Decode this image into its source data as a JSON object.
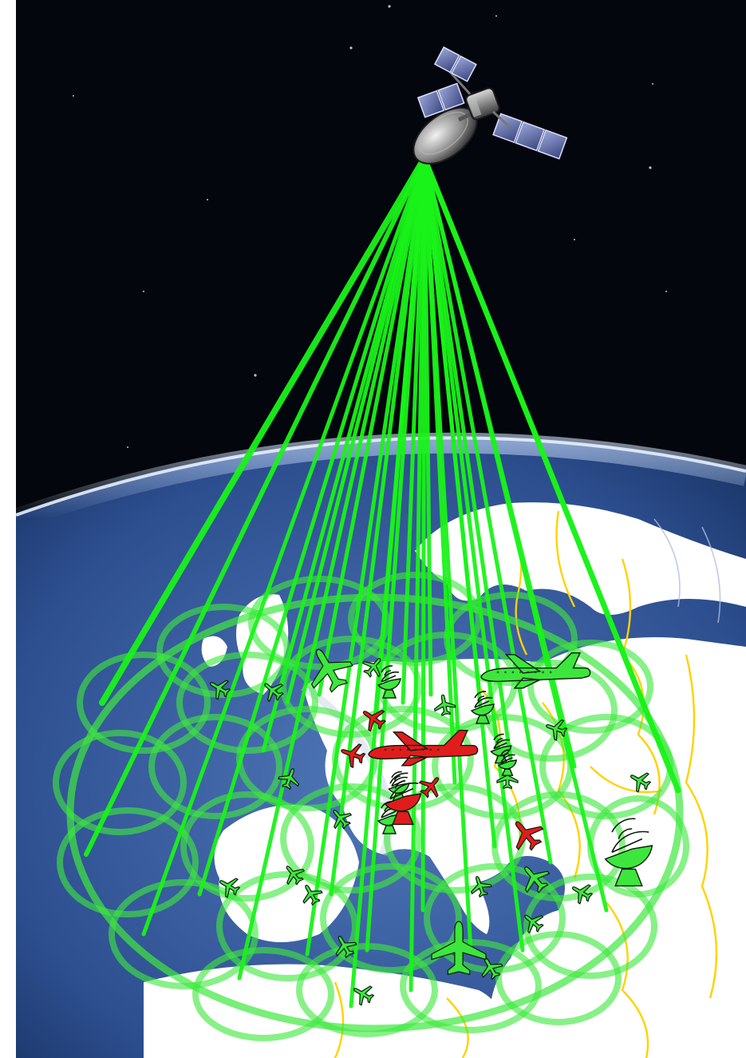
{
  "scene": {
    "colors": {
      "space": "#03060c",
      "ocean_light": "#4f77b8",
      "ocean_dark": "#16305f",
      "land": "#ffffff",
      "border": "#ffd200",
      "atmosphere": "#9fc4ff",
      "beam": "#19f219",
      "cell": "#3ee83e",
      "aircraft_ok": "#3de63d",
      "aircraft_alert": "#e11c1c",
      "outline": "#0b1a0b"
    },
    "icons": [
      "satellite-icon",
      "airplane-icon",
      "ground-station-icon"
    ],
    "aircraft": [
      {
        "type": "airplane-icon",
        "status": "ok",
        "size": "large"
      },
      {
        "type": "airplane-icon",
        "status": "ok",
        "size": "large"
      },
      {
        "type": "airplane-icon",
        "status": "alert",
        "size": "large"
      },
      {
        "type": "airplane-icon",
        "status": "ok",
        "size": "large"
      },
      {
        "type": "airplane-icon",
        "status": "alert",
        "size": "medium"
      },
      {
        "type": "airplane-icon",
        "status": "alert",
        "size": "small"
      },
      {
        "type": "airplane-icon",
        "status": "alert",
        "size": "small"
      },
      {
        "type": "airplane-icon",
        "status": "alert",
        "size": "small"
      },
      {
        "type": "airplane-icon",
        "status": "ok",
        "size": "small"
      }
    ],
    "ground_stations": [
      {
        "type": "ground-station-icon",
        "status": "ok"
      },
      {
        "type": "ground-station-icon",
        "status": "alert"
      },
      {
        "type": "ground-station-icon",
        "status": "ok"
      }
    ]
  }
}
